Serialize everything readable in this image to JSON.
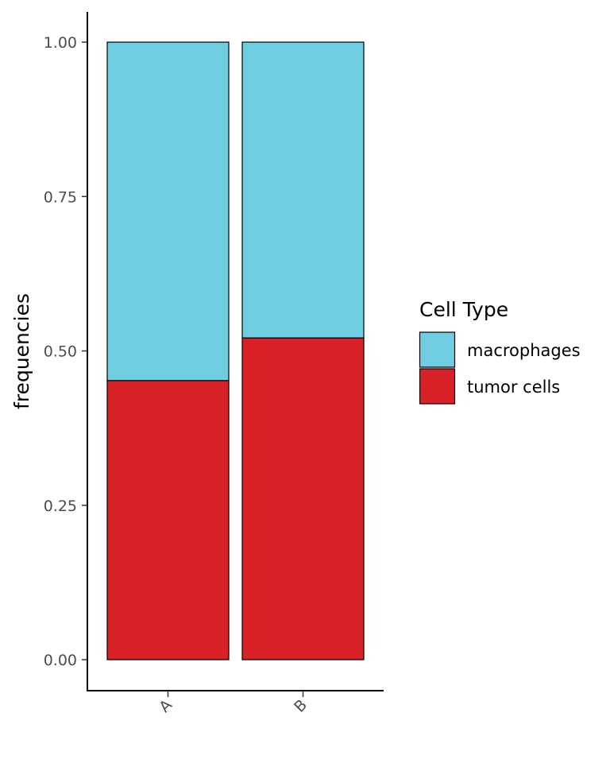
{
  "chart_data": {
    "type": "bar",
    "stacked": true,
    "title": "",
    "xlabel": "",
    "ylabel": "frequencies",
    "categories": [
      "A",
      "B"
    ],
    "series": [
      {
        "name": "tumor cells",
        "values": [
          0.452,
          0.521
        ],
        "color": "#d92228"
      },
      {
        "name": "macrophages",
        "values": [
          0.548,
          0.479
        ],
        "color": "#6ecde0"
      }
    ],
    "ylim": [
      0,
      1
    ],
    "yticks": [
      0,
      0.25,
      0.5,
      0.75,
      1
    ],
    "ytick_labels": [
      "0.00",
      "0.25",
      "0.50",
      "0.75",
      "1.00"
    ],
    "grid": false,
    "legend": {
      "title": "Cell Type",
      "position": "right",
      "entries": [
        "macrophages",
        "tumor cells"
      ]
    }
  }
}
